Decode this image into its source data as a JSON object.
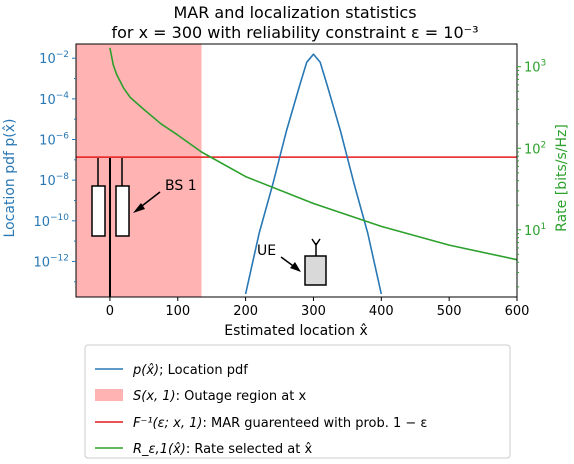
{
  "chart_data": {
    "type": "line",
    "title_line1": "MAR and localization statistics",
    "title_line2": "for x = 300 with reliability constraint ε = 10⁻³",
    "xlabel": "Estimated location x̂",
    "ylabel_left": "Location pdf p(x̂)",
    "ylabel_right": "Rate [bits/s/Hz]",
    "xlim": [
      -50,
      600
    ],
    "x_ticks": [
      "0",
      "100",
      "200",
      "300",
      "400",
      "500",
      "600"
    ],
    "x_tick_values": [
      0,
      100,
      200,
      300,
      400,
      500,
      600
    ],
    "y_left_scale": "log",
    "y_left_exp_range": [
      -13.75,
      -1.3
    ],
    "y_left_ticks": [
      {
        "exp": -2,
        "base": "10",
        "sup": "−2"
      },
      {
        "exp": -4,
        "base": "10",
        "sup": "−4"
      },
      {
        "exp": -6,
        "base": "10",
        "sup": "−6"
      },
      {
        "exp": -8,
        "base": "10",
        "sup": "−8"
      },
      {
        "exp": -10,
        "base": "10",
        "sup": "−10"
      },
      {
        "exp": -12,
        "base": "10",
        "sup": "−12"
      }
    ],
    "y_right_scale": "log",
    "y_right_range": [
      1.5,
      1900
    ],
    "y_right_ticks": [
      {
        "value": 1000,
        "base": "10",
        "sup": "3"
      },
      {
        "value": 100,
        "base": "10",
        "sup": "2"
      },
      {
        "value": 10,
        "base": "10",
        "sup": "1"
      }
    ],
    "outage_region": {
      "x_start": -50,
      "x_end": 135,
      "color": "#ffb3b3"
    },
    "mar_threshold": {
      "rate": 78,
      "color": "#e41a1c"
    },
    "series": [
      {
        "name": "p(x̂); Location pdf",
        "color": "#2878b5",
        "axis": "left",
        "x": [
          200,
          220,
          240,
          260,
          280,
          290,
          300,
          310,
          320,
          340,
          360,
          380,
          400
        ],
        "log10_y": [
          -13.6,
          -10.6,
          -8.2,
          -5.6,
          -3.3,
          -2.2,
          -1.8,
          -2.2,
          -3.3,
          -5.6,
          -8.2,
          -10.6,
          -13.6
        ]
      },
      {
        "name": "R_ε,1(x̂); Rate selected at x̂",
        "color": "#2ca02c",
        "axis": "right",
        "x": [
          0,
          5,
          10,
          20,
          30,
          50,
          75,
          100,
          135,
          200,
          300,
          400,
          500,
          600
        ],
        "y": [
          1700,
          1050,
          800,
          550,
          420,
          300,
          200,
          145,
          90,
          45,
          21,
          11,
          6.5,
          4.3
        ]
      }
    ],
    "annotations": [
      {
        "label": "BS 1",
        "x": 0
      },
      {
        "label": "UE",
        "x": 300
      }
    ],
    "legend": {
      "placement": "below",
      "entries": [
        {
          "kind": "line",
          "color": "#2878b5",
          "math": "p(x̂)",
          "text": "; Location pdf"
        },
        {
          "kind": "patch",
          "color": "#ffb3b3",
          "math": "S(x, 1)",
          "text": ": Outage region at x"
        },
        {
          "kind": "line",
          "color": "#e41a1c",
          "math": "F⁻¹(ε; x, 1)",
          "text": ": MAR guarenteed with prob.  1 − ε"
        },
        {
          "kind": "line",
          "color": "#2ca02c",
          "math": "R_ε,1(x̂)",
          "text": ": Rate selected at x̂"
        }
      ]
    }
  }
}
